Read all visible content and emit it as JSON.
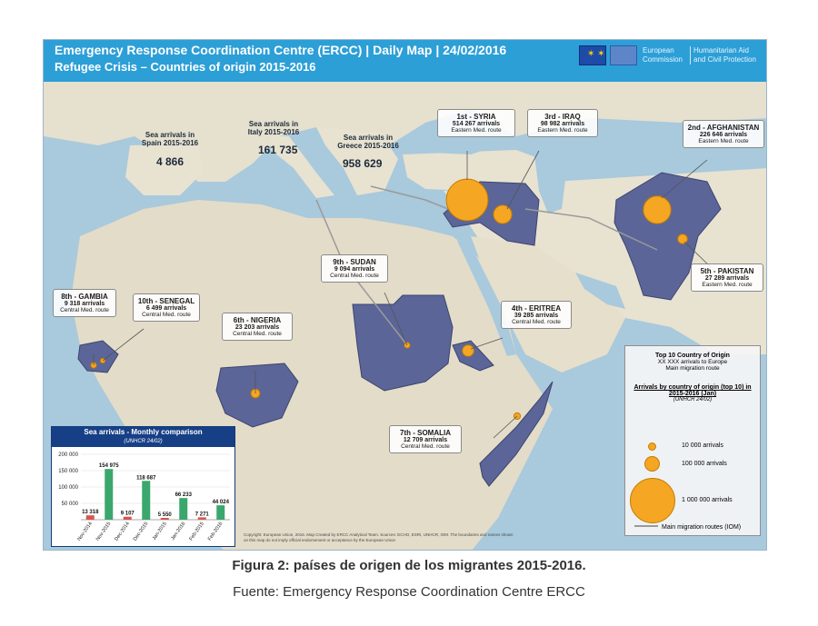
{
  "header": {
    "title": "Emergency Response Coordination Centre (ERCC) | Daily Map | 24/02/2016",
    "subtitle": "Refugee Crisis – Countries of origin 2015-2016",
    "logo_left": "European Commission",
    "logo_right": "Humanitarian Aid and Civil Protection"
  },
  "sea_arrivals": [
    {
      "label": "Sea arrivals in Spain 2015-2016",
      "value": "4 866"
    },
    {
      "label": "Sea arrivals in Italy 2015-2016",
      "value": "161 735"
    },
    {
      "label": "Sea arrivals in Greece 2015-2016",
      "value": "958 629"
    }
  ],
  "countries": [
    {
      "rank": "1st - SYRIA",
      "arrivals": "514 267 arrivals",
      "route": "Eastern Med. route",
      "count": 514267
    },
    {
      "rank": "2nd - AFGHANISTAN",
      "arrivals": "226 646 arrivals",
      "route": "Eastern Med. route",
      "count": 226646
    },
    {
      "rank": "3rd - IRAQ",
      "arrivals": "98 982 arrivals",
      "route": "Eastern Med. route",
      "count": 98982
    },
    {
      "rank": "4th - ERITREA",
      "arrivals": "39 285 arrivals",
      "route": "Central Med. route",
      "count": 39285
    },
    {
      "rank": "5th - PAKISTAN",
      "arrivals": "27 289 arrivals",
      "route": "Eastern Med. route",
      "count": 27289
    },
    {
      "rank": "6th - NIGERIA",
      "arrivals": "23 203 arrivals",
      "route": "Central Med. route",
      "count": 23203
    },
    {
      "rank": "7th - SOMALIA",
      "arrivals": "12 709 arrivals",
      "route": "Central Med. route",
      "count": 12709
    },
    {
      "rank": "8th - GAMBIA",
      "arrivals": "9 318 arrivals",
      "route": "Central Med. route",
      "count": 9318
    },
    {
      "rank": "9th - SUDAN",
      "arrivals": "9 094 arrivals",
      "route": "Central Med. route",
      "count": 9094
    },
    {
      "rank": "10th - SENEGAL",
      "arrivals": "6 499 arrivals",
      "route": "Central Med. route",
      "count": 6499
    }
  ],
  "legend": {
    "title": "Top 10 Country of Origin",
    "sub1": "XX XXX arrivals to Europe",
    "sub2": "Main migration route",
    "heading": "Arrivals by country of origin (top 10) in 2015-2016 (Jan)",
    "source": "(UNHCR 24/02)",
    "sizes": [
      {
        "label": "10 000 arrivals",
        "value": 10000
      },
      {
        "label": "100 000 arrivals",
        "value": 100000
      },
      {
        "label": "1 000 000 arrivals",
        "value": 1000000
      }
    ],
    "route_label": "Main migration routes (IOM)",
    "circle_color": "#f5a623",
    "country_color": "#5b6598"
  },
  "chart_data": {
    "type": "bar",
    "title": "Sea arrivals - Monthly comparison",
    "subtitle": "(UNHCR 24/02)",
    "categories": [
      "Nov-2014",
      "Nov-2015",
      "Dec-2014",
      "Dec-2015",
      "Jan-2015",
      "Jan-2016",
      "Feb-2015",
      "Feb-2016"
    ],
    "values": [
      13318,
      154975,
      9107,
      118687,
      5550,
      66233,
      7271,
      44024
    ],
    "labels": [
      "13 318",
      "154 975",
      "9 107",
      "118 687",
      "5 550",
      "66 233",
      "7 271",
      "44 024"
    ],
    "colors": [
      "#d9534f",
      "#3aa76d",
      "#d9534f",
      "#3aa76d",
      "#d9534f",
      "#3aa76d",
      "#d9534f",
      "#3aa76d"
    ],
    "yticks": [
      "200 000",
      "150 000",
      "100 000",
      "50 000"
    ],
    "ylim": [
      0,
      200000
    ],
    "xlabel": "",
    "ylabel": ""
  },
  "credit": "Copyright: European Union, 2016. Map Created by ERCC Analytical Team. Sources: ECHO, ESRI, UNHCR, IOM. The boundaries and names shown on this map do not imply official endorsement or acceptance by the European Union",
  "caption": "Figura 2: países de origen de los migrantes 2015-2016.",
  "source": "Fuente: Emergency Response Coordination Centre ERCC"
}
